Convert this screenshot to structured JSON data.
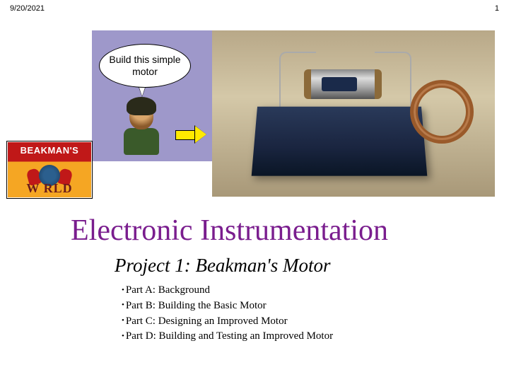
{
  "header": {
    "date": "9/20/2021",
    "page_number": "1"
  },
  "speech": {
    "text": "Build this simple motor"
  },
  "logo": {
    "top_text": "BEAKMAN'S",
    "bottom_text": "W RLD"
  },
  "title": "Electronic Instrumentation",
  "subtitle": "Project 1: Beakman's Motor",
  "parts": [
    {
      "label": "Part A:",
      "desc": "Background"
    },
    {
      "label": "Part B:",
      "desc": "Building the Basic Motor"
    },
    {
      "label": "Part C:",
      "desc": "Designing an Improved Motor"
    },
    {
      "label": "Part D:",
      "desc": "Building and Testing an Improved Motor"
    }
  ],
  "colors": {
    "title_color": "#7a1d8e",
    "purple_box": "#9e98ca",
    "arrow_fill": "#ffea00"
  }
}
